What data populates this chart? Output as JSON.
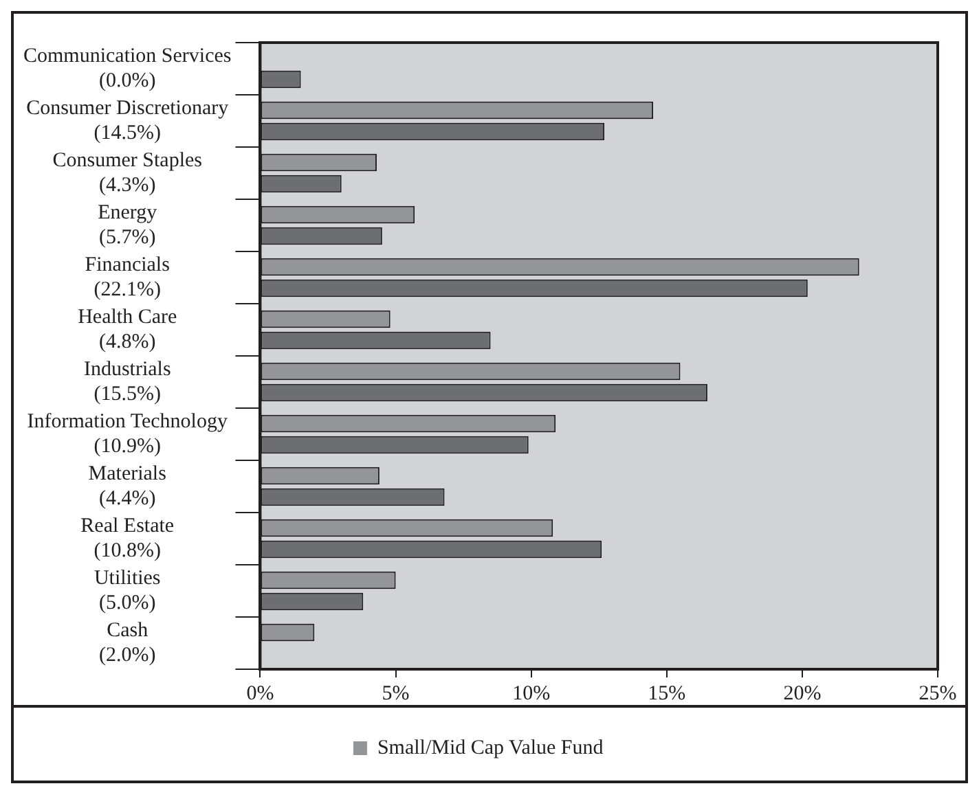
{
  "chart_data": {
    "type": "bar",
    "orientation": "horizontal",
    "categories": [
      "Communication Services\n(0.0%)",
      "Consumer Discretionary\n(14.5%)",
      "Consumer Staples\n(4.3%)",
      "Energy\n(5.7%)",
      "Financials\n(22.1%)",
      "Health Care\n(4.8%)",
      "Industrials\n(15.5%)",
      "Information Technology\n(10.9%)",
      "Materials\n(4.4%)",
      "Real Estate\n(10.8%)",
      "Utilities\n(5.0%)",
      "Cash\n(2.0%)"
    ],
    "series": [
      {
        "name": "Small/Mid Cap Value Fund",
        "color": "#939598",
        "values": [
          0.0,
          14.5,
          4.3,
          5.7,
          22.1,
          4.8,
          15.5,
          10.9,
          4.4,
          10.8,
          5.0,
          2.0
        ]
      },
      {
        "color": "#6d6e71",
        "values": [
          1.5,
          12.7,
          3.0,
          4.5,
          20.2,
          8.5,
          16.5,
          9.9,
          6.8,
          12.6,
          3.8,
          0
        ]
      }
    ],
    "xlim": [
      0,
      25
    ],
    "xticks": [
      {
        "value": 0,
        "label": "0%"
      },
      {
        "value": 5,
        "label": "5%"
      },
      {
        "value": 10,
        "label": "10%"
      },
      {
        "value": 15,
        "label": "15%"
      },
      {
        "value": 20,
        "label": "20%"
      },
      {
        "value": 25,
        "label": "25%"
      }
    ],
    "legend": "bottom"
  }
}
